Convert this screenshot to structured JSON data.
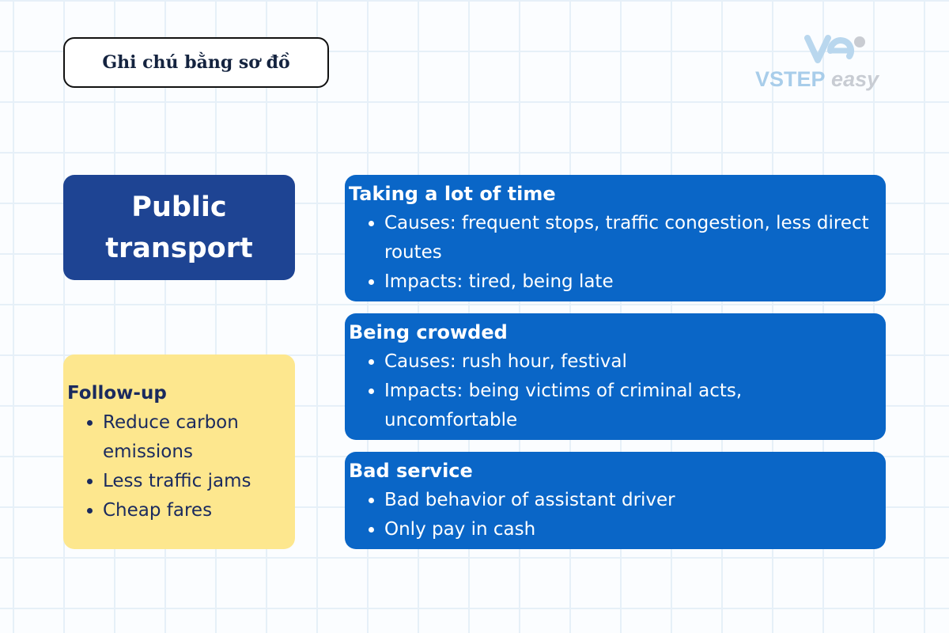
{
  "title": "Ghi chú bằng sơ đồ",
  "logo": {
    "word1": "VSTEP",
    "word2": "easy"
  },
  "main_topic": {
    "line1": "Public",
    "line2": "transport"
  },
  "followup": {
    "heading": "Follow-up",
    "items": [
      "Reduce carbon emissions",
      "Less traffic jams",
      "Cheap fares"
    ]
  },
  "cards": [
    {
      "heading": "Taking a lot of time",
      "items": [
        "Causes: frequent stops, traffic congestion, less direct routes",
        "Impacts: tired, being late"
      ]
    },
    {
      "heading": "Being crowded",
      "items": [
        "Causes: rush hour, festival",
        "Impacts: being victims of criminal acts, uncomfortable"
      ]
    },
    {
      "heading": "Bad service",
      "items": [
        "Bad behavior of assistant driver",
        "Only pay in cash"
      ]
    }
  ],
  "colors": {
    "main_box": "#1e4493",
    "cards": "#0a66c7",
    "followup_box": "#fde78e",
    "dark_text": "#1a2a5e"
  }
}
